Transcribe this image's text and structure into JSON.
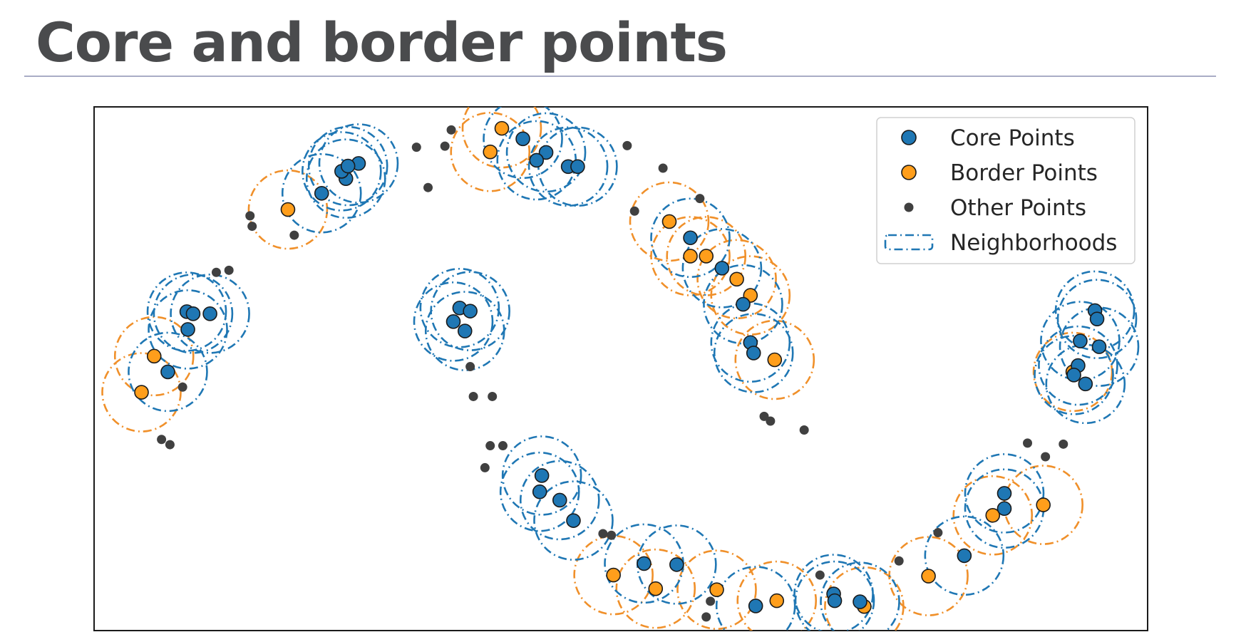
{
  "title": "Core and border points",
  "chart_data": {
    "type": "scatter",
    "title": "",
    "xlabel": "",
    "ylabel": "",
    "xlim": [
      0,
      100
    ],
    "ylim": [
      0,
      100
    ],
    "grid": false,
    "legend_position": "top-right",
    "colors": {
      "core": "#1f77b4",
      "border": "#ff9e1b",
      "other": "#404040",
      "neighborhood_core": "#1f77b4",
      "neighborhood_border": "#f0902a"
    },
    "series": [
      {
        "name": "Core Points",
        "kind": "core",
        "points": [
          [
            8.8,
            60.9
          ],
          [
            9.4,
            60.5
          ],
          [
            11.0,
            60.5
          ],
          [
            8.9,
            57.5
          ],
          [
            7.0,
            49.4
          ],
          [
            21.6,
            83.5
          ],
          [
            23.9,
            86.3
          ],
          [
            23.5,
            87.7
          ],
          [
            25.1,
            89.2
          ],
          [
            24.1,
            88.7
          ],
          [
            35.2,
            57.2
          ],
          [
            34.7,
            61.6
          ],
          [
            35.7,
            61.0
          ],
          [
            34.1,
            59.0
          ],
          [
            40.7,
            93.9
          ],
          [
            42.9,
            91.3
          ],
          [
            42.0,
            89.8
          ],
          [
            45.0,
            88.6
          ],
          [
            45.9,
            88.6
          ],
          [
            56.6,
            75.0
          ],
          [
            59.6,
            69.2
          ],
          [
            61.6,
            62.3
          ],
          [
            62.3,
            55.0
          ],
          [
            62.6,
            53.0
          ],
          [
            42.5,
            29.6
          ],
          [
            42.3,
            26.5
          ],
          [
            44.2,
            24.9
          ],
          [
            45.5,
            21.0
          ],
          [
            52.2,
            12.8
          ],
          [
            55.3,
            12.6
          ],
          [
            62.8,
            4.7
          ],
          [
            70.2,
            7.0
          ],
          [
            72.7,
            5.5
          ],
          [
            70.3,
            5.7
          ],
          [
            82.6,
            14.3
          ],
          [
            86.4,
            26.2
          ],
          [
            86.4,
            23.3
          ],
          [
            95.0,
            61.1
          ],
          [
            95.2,
            59.5
          ],
          [
            93.6,
            55.3
          ],
          [
            95.4,
            54.2
          ],
          [
            93.4,
            50.6
          ],
          [
            93.0,
            48.8
          ],
          [
            94.1,
            47.1
          ]
        ]
      },
      {
        "name": "Border Points",
        "kind": "border",
        "points": [
          [
            5.7,
            52.4
          ],
          [
            4.5,
            45.5
          ],
          [
            18.4,
            80.4
          ],
          [
            38.7,
            95.9
          ],
          [
            37.6,
            91.4
          ],
          [
            54.6,
            78.1
          ],
          [
            56.6,
            71.5
          ],
          [
            58.1,
            71.5
          ],
          [
            61.0,
            67.1
          ],
          [
            62.3,
            64.0
          ],
          [
            64.6,
            51.7
          ],
          [
            49.3,
            10.6
          ],
          [
            53.3,
            8.0
          ],
          [
            59.1,
            7.8
          ],
          [
            64.8,
            5.7
          ],
          [
            73.1,
            4.6
          ],
          [
            79.2,
            10.4
          ],
          [
            85.3,
            22.0
          ],
          [
            90.1,
            24.0
          ],
          [
            92.9,
            49.4
          ]
        ]
      },
      {
        "name": "Other Points",
        "kind": "other",
        "points": [
          [
            15.0,
            77.2
          ],
          [
            14.8,
            79.2
          ],
          [
            19.0,
            75.5
          ],
          [
            11.6,
            68.4
          ],
          [
            12.8,
            68.8
          ],
          [
            8.4,
            46.5
          ],
          [
            6.4,
            36.5
          ],
          [
            7.2,
            35.5
          ],
          [
            30.6,
            92.3
          ],
          [
            33.3,
            92.5
          ],
          [
            31.7,
            84.6
          ],
          [
            33.9,
            95.6
          ],
          [
            35.7,
            50.4
          ],
          [
            36.0,
            44.7
          ],
          [
            37.8,
            44.7
          ],
          [
            50.6,
            92.6
          ],
          [
            54.0,
            88.3
          ],
          [
            57.5,
            82.5
          ],
          [
            51.3,
            80.1
          ],
          [
            63.6,
            40.9
          ],
          [
            64.2,
            40.0
          ],
          [
            67.4,
            38.3
          ],
          [
            37.6,
            35.3
          ],
          [
            38.8,
            35.3
          ],
          [
            37.1,
            31.1
          ],
          [
            48.3,
            18.5
          ],
          [
            49.1,
            18.2
          ],
          [
            58.5,
            5.6
          ],
          [
            68.9,
            10.6
          ],
          [
            76.4,
            13.3
          ],
          [
            80.1,
            18.7
          ],
          [
            88.6,
            35.8
          ],
          [
            90.3,
            33.2
          ],
          [
            92.0,
            35.6
          ],
          [
            58.1,
            2.6
          ]
        ]
      }
    ],
    "legend": [
      {
        "label": "Core Points",
        "kind": "core"
      },
      {
        "label": "Border Points",
        "kind": "border"
      },
      {
        "label": "Other Points",
        "kind": "other"
      },
      {
        "label": "Neighborhoods",
        "kind": "neighborhood"
      }
    ]
  }
}
